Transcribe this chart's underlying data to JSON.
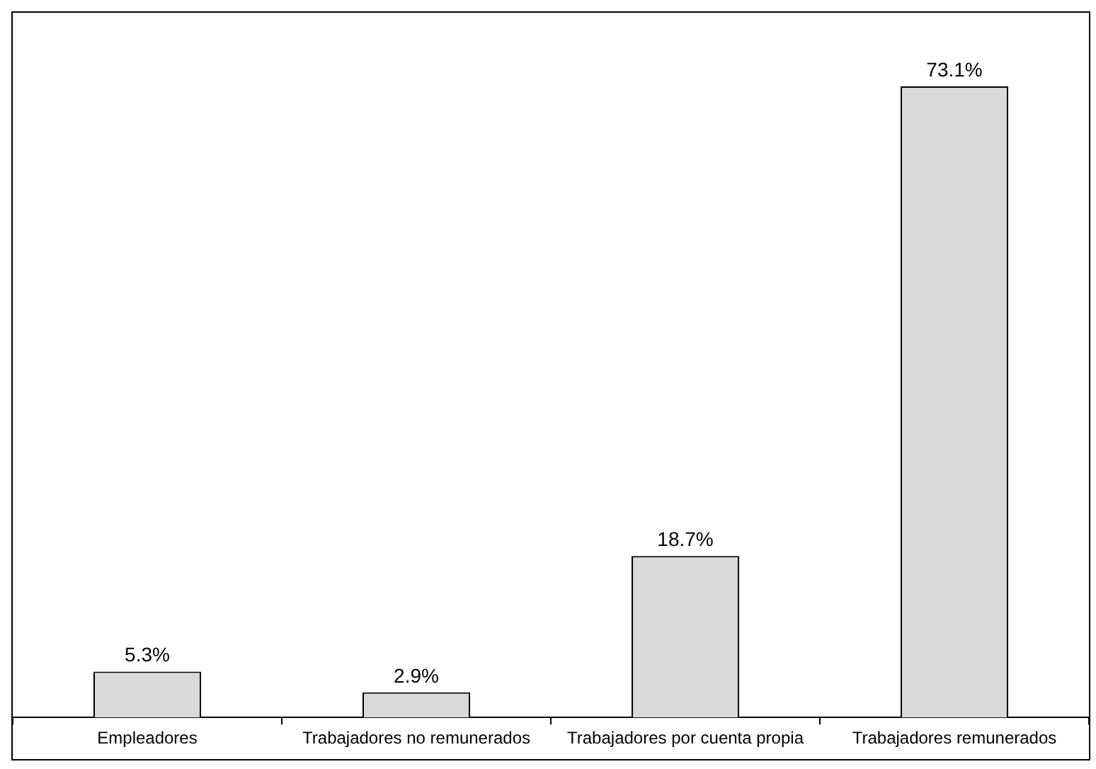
{
  "chart_data": {
    "type": "bar",
    "categories": [
      "Empleadores",
      "Trabajadores no remunerados",
      "Trabajadores por cuenta propia",
      "Trabajadores remunerados"
    ],
    "values": [
      5.3,
      2.9,
      18.7,
      73.1
    ],
    "value_labels": [
      "5.3%",
      "2.9%",
      "18.7%",
      "73.1%"
    ],
    "color": "#d9d9d9",
    "grid": false,
    "legend": false
  }
}
